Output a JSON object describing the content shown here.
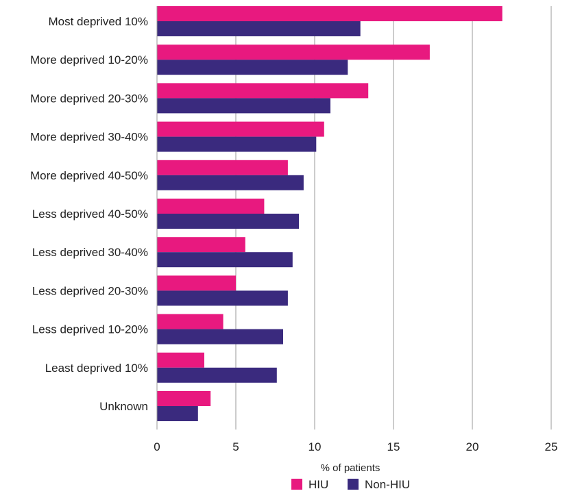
{
  "chart_data": {
    "type": "bar",
    "orientation": "horizontal",
    "categories": [
      "Most deprived 10%",
      "More deprived 10-20%",
      "More deprived 20-30%",
      "More deprived 30-40%",
      "More deprived 40-50%",
      "Less deprived 40-50%",
      "Less deprived 30-40%",
      "Less deprived 20-30%",
      "Less deprived 10-20%",
      "Least deprived 10%",
      "Unknown"
    ],
    "series": [
      {
        "name": "HIU",
        "color": "#e8197f",
        "values": [
          21.9,
          17.3,
          13.4,
          10.6,
          8.3,
          6.8,
          5.6,
          5.0,
          4.2,
          3.0,
          3.4
        ]
      },
      {
        "name": "Non-HIU",
        "color": "#3a2a7e",
        "values": [
          12.9,
          12.1,
          11.0,
          10.1,
          9.3,
          9.0,
          8.6,
          8.3,
          8.0,
          7.6,
          2.6
        ]
      }
    ],
    "xlabel": "% of patients",
    "xlim": [
      0,
      25
    ],
    "xticks": [
      0,
      5,
      10,
      15,
      20,
      25
    ],
    "grid": "vertical",
    "legend_position": "bottom-center"
  }
}
